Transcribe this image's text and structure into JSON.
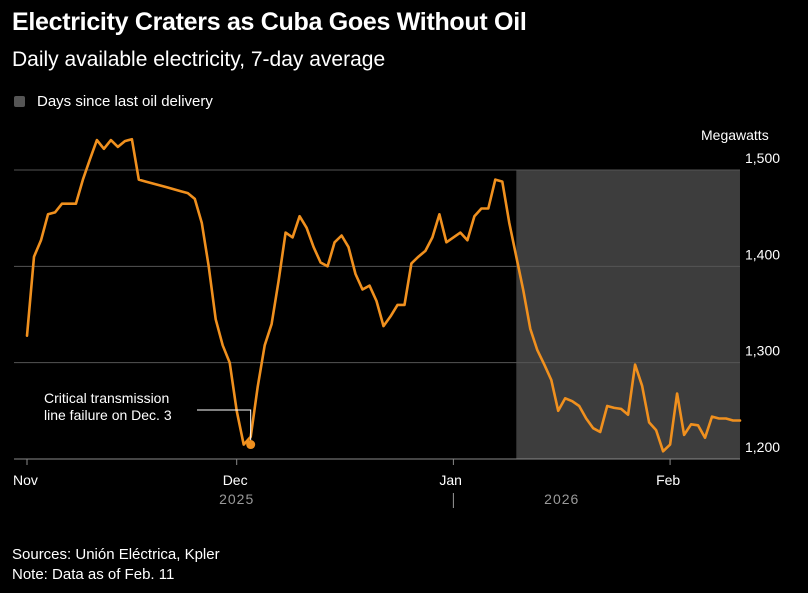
{
  "chart_data": {
    "type": "line",
    "title": "Electricity Craters as Cuba Goes Without Oil",
    "subtitle": "Daily available electricity, 7-day average",
    "legend": [
      {
        "label": "Days since last oil delivery",
        "color": "#555555"
      }
    ],
    "ylabel": "Megawatts",
    "ylim": [
      1190,
      1500
    ],
    "yticks": [
      {
        "value": 1500,
        "label": "1,500"
      },
      {
        "value": 1400,
        "label": "1,400"
      },
      {
        "value": 1300,
        "label": "1,300"
      },
      {
        "value": 1200,
        "label": "1,200"
      }
    ],
    "x_start_date": "2025-11-01",
    "x_end_date": "2026-02-11",
    "xticks": [
      {
        "day": 0,
        "label": "Nov"
      },
      {
        "day": 30,
        "label": "Dec"
      },
      {
        "day": 61,
        "label": "Jan"
      },
      {
        "day": 92,
        "label": "Feb"
      }
    ],
    "year_labels": [
      {
        "day": 30,
        "label": "2025"
      },
      {
        "day": 76.5,
        "label": "2026"
      }
    ],
    "year_divider_day": 61,
    "shaded_region": {
      "label": "Days since last oil delivery",
      "start_day": 70,
      "end_day": 102
    },
    "series": [
      {
        "name": "Daily available electricity, 7-day average",
        "color": "#f0901e",
        "x": [
          0,
          1,
          2,
          3,
          4,
          5,
          6,
          7,
          8,
          9,
          10,
          11,
          12,
          13,
          14,
          15,
          16,
          17,
          18,
          19,
          20,
          21,
          22,
          23,
          24,
          25,
          26,
          27,
          28,
          29,
          30,
          31,
          32,
          33,
          34,
          35,
          36,
          37,
          38,
          39,
          40,
          41,
          42,
          43,
          44,
          45,
          46,
          47,
          48,
          49,
          50,
          51,
          52,
          53,
          54,
          55,
          56,
          57,
          58,
          59,
          60,
          61,
          62,
          63,
          64,
          65,
          66,
          67,
          68,
          69,
          70,
          71,
          72,
          73,
          74,
          75,
          76,
          77,
          78,
          79,
          80,
          81,
          82,
          83,
          84,
          85,
          86,
          87,
          88,
          89,
          90,
          91,
          92,
          93,
          94,
          95,
          96,
          97,
          98,
          99,
          100,
          101,
          102
        ],
        "values": [
          1328,
          1410,
          1427,
          1454,
          1456,
          1465,
          1465,
          1465,
          1490,
          1511,
          1531,
          1522,
          1531,
          1524,
          1530,
          1532,
          1490,
          1488,
          1486,
          1484,
          1482,
          1480,
          1478,
          1476,
          1470,
          1445,
          1400,
          1345,
          1318,
          1300,
          1250,
          1215,
          1223,
          1275,
          1318,
          1340,
          1385,
          1435,
          1430,
          1452,
          1440,
          1420,
          1404,
          1400,
          1425,
          1432,
          1420,
          1392,
          1376,
          1380,
          1364,
          1338,
          1348,
          1360,
          1360,
          1403,
          1410,
          1416,
          1430,
          1454,
          1425,
          1430,
          1435,
          1427,
          1452,
          1460,
          1460,
          1490,
          1488,
          1445,
          1410,
          1375,
          1335,
          1313,
          1298,
          1282,
          1250,
          1263,
          1260,
          1255,
          1242,
          1232,
          1228,
          1255,
          1253,
          1252,
          1246,
          1298,
          1276,
          1238,
          1230,
          1208,
          1215,
          1268,
          1225,
          1236,
          1235,
          1222,
          1244,
          1242,
          1242,
          1240,
          1240
        ]
      }
    ],
    "annotation": {
      "text_lines": [
        "Critical transmission",
        "line failure on Dec. 3"
      ],
      "day": 32,
      "value": 1215
    },
    "grid": true
  },
  "sources": "Sources: Unión Eléctrica, Kpler",
  "note": "Note: Data as of Feb. 11"
}
